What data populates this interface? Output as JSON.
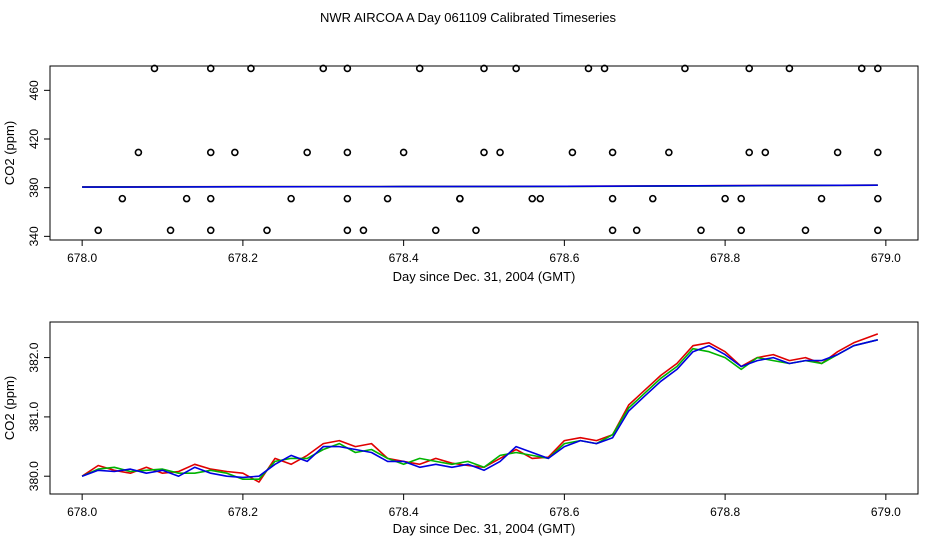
{
  "title": "NWR AIRCOA A  Day 061109  Calibrated Timeseries",
  "colors": {
    "red": "#e00000",
    "green": "#00b400",
    "blue": "#0000e0",
    "black": "#000000"
  },
  "chart_data": [
    {
      "type": "scatter",
      "xlabel": "Day since Dec. 31, 2004 (GMT)",
      "ylabel": "CO2 (ppm)",
      "xlim": [
        677.96,
        679.04
      ],
      "ylim": [
        337,
        480
      ],
      "xticks": [
        678.0,
        678.2,
        678.4,
        678.6,
        678.8,
        679.0
      ],
      "xtick_labels": [
        "678.0",
        "678.2",
        "678.4",
        "678.6",
        "678.8",
        "679.0"
      ],
      "yticks": [
        340,
        380,
        420,
        460
      ],
      "ytick_labels": [
        "340",
        "380",
        "420",
        "460"
      ],
      "points": [
        [
          678.02,
          345
        ],
        [
          678.09,
          478
        ],
        [
          678.13,
          371
        ],
        [
          678.16,
          409
        ],
        [
          678.19,
          409
        ],
        [
          678.23,
          345
        ],
        [
          678.3,
          478
        ],
        [
          678.33,
          371
        ],
        [
          678.38,
          371
        ],
        [
          678.44,
          345
        ],
        [
          678.5,
          478
        ],
        [
          678.54,
          478
        ],
        [
          678.57,
          371
        ],
        [
          678.63,
          478
        ],
        [
          678.66,
          409
        ],
        [
          678.71,
          371
        ],
        [
          678.77,
          345
        ],
        [
          678.83,
          478
        ],
        [
          678.9,
          345
        ],
        [
          678.94,
          409
        ],
        [
          678.99,
          371
        ],
        [
          678.07,
          409
        ],
        [
          678.16,
          478
        ],
        [
          678.26,
          371
        ],
        [
          678.33,
          409
        ],
        [
          678.42,
          478
        ],
        [
          678.47,
          371
        ],
        [
          678.52,
          409
        ],
        [
          678.61,
          409
        ],
        [
          678.69,
          345
        ],
        [
          678.75,
          478
        ],
        [
          678.83,
          409
        ],
        [
          678.88,
          478
        ],
        [
          678.97,
          478
        ],
        [
          678.99,
          409
        ],
        [
          678.05,
          371
        ],
        [
          678.11,
          345
        ],
        [
          678.21,
          478
        ],
        [
          678.28,
          409
        ],
        [
          678.33,
          345
        ],
        [
          678.4,
          409
        ],
        [
          678.47,
          371
        ],
        [
          678.5,
          409
        ],
        [
          678.56,
          371
        ],
        [
          678.65,
          478
        ],
        [
          678.66,
          345
        ],
        [
          678.73,
          409
        ],
        [
          678.8,
          371
        ],
        [
          678.82,
          345
        ],
        [
          678.85,
          409
        ],
        [
          678.92,
          371
        ],
        [
          678.99,
          478
        ],
        [
          678.16,
          371
        ],
        [
          678.16,
          345
        ],
        [
          678.33,
          478
        ],
        [
          678.35,
          345
        ],
        [
          678.49,
          345
        ],
        [
          678.66,
          371
        ],
        [
          678.82,
          371
        ],
        [
          678.99,
          345
        ]
      ],
      "series": [
        {
          "color": "red",
          "x": [
            678.0,
            678.2,
            678.4,
            678.6,
            678.8,
            678.99
          ],
          "y": [
            380.6,
            380.8,
            380.9,
            381.1,
            381.6,
            382.0
          ]
        },
        {
          "color": "green",
          "x": [
            678.0,
            678.2,
            678.4,
            678.6,
            678.8,
            678.99
          ],
          "y": [
            380.5,
            380.8,
            380.9,
            381.0,
            381.5,
            382.0
          ]
        },
        {
          "color": "blue",
          "x": [
            678.0,
            678.2,
            678.4,
            678.6,
            678.8,
            678.99
          ],
          "y": [
            380.5,
            380.7,
            380.9,
            381.1,
            381.6,
            382.0
          ]
        }
      ]
    },
    {
      "type": "line",
      "xlabel": "Day since Dec. 31, 2004 (GMT)",
      "ylabel": "CO2 (ppm)",
      "xlim": [
        677.96,
        679.04
      ],
      "ylim": [
        379.7,
        382.6
      ],
      "xticks": [
        678.0,
        678.2,
        678.4,
        678.6,
        678.8,
        679.0
      ],
      "xtick_labels": [
        "678.0",
        "678.2",
        "678.4",
        "678.6",
        "678.8",
        "679.0"
      ],
      "yticks": [
        380.0,
        381.0,
        382.0
      ],
      "ytick_labels": [
        "380.0",
        "381.0",
        "382.0"
      ],
      "series": [
        {
          "color": "red",
          "x": [
            678.0,
            678.02,
            678.04,
            678.06,
            678.08,
            678.1,
            678.12,
            678.14,
            678.16,
            678.18,
            678.2,
            678.22,
            678.24,
            678.26,
            678.28,
            678.3,
            678.32,
            678.34,
            678.36,
            678.38,
            678.4,
            678.42,
            678.44,
            678.46,
            678.48,
            678.5,
            678.52,
            678.54,
            678.56,
            678.58,
            678.6,
            678.62,
            678.64,
            678.66,
            678.68,
            678.7,
            678.72,
            678.74,
            678.76,
            678.78,
            678.8,
            678.82,
            678.84,
            678.86,
            678.88,
            678.9,
            678.92,
            678.94,
            678.96,
            678.99
          ],
          "y": [
            380.0,
            380.18,
            380.1,
            380.05,
            380.15,
            380.05,
            380.08,
            380.2,
            380.12,
            380.08,
            380.05,
            379.9,
            380.3,
            380.2,
            380.35,
            380.55,
            380.6,
            380.5,
            380.55,
            380.3,
            380.25,
            380.2,
            380.3,
            380.22,
            380.18,
            380.15,
            380.3,
            380.45,
            380.3,
            380.32,
            380.6,
            380.65,
            380.6,
            380.7,
            381.2,
            381.45,
            381.7,
            381.9,
            382.2,
            382.25,
            382.1,
            381.85,
            382.0,
            382.05,
            381.95,
            382.0,
            381.9,
            382.1,
            382.25,
            382.4
          ]
        },
        {
          "color": "green",
          "x": [
            678.0,
            678.02,
            678.04,
            678.06,
            678.08,
            678.1,
            678.12,
            678.14,
            678.16,
            678.18,
            678.2,
            678.22,
            678.24,
            678.26,
            678.28,
            678.3,
            678.32,
            678.34,
            678.36,
            678.38,
            678.4,
            678.42,
            678.44,
            678.46,
            678.48,
            678.5,
            678.52,
            678.54,
            678.56,
            678.58,
            678.6,
            678.62,
            678.64,
            678.66,
            678.68,
            678.7,
            678.72,
            678.74,
            678.76,
            678.78,
            678.8,
            678.82,
            678.84,
            678.86,
            678.88,
            678.9,
            678.92,
            678.94,
            678.96,
            678.99
          ],
          "y": [
            380.0,
            380.12,
            380.15,
            380.08,
            380.1,
            380.12,
            380.05,
            380.05,
            380.1,
            380.05,
            379.95,
            379.95,
            380.25,
            380.3,
            380.3,
            380.45,
            380.55,
            380.4,
            380.45,
            380.3,
            380.2,
            380.3,
            380.25,
            380.2,
            380.25,
            380.15,
            380.35,
            380.4,
            380.35,
            380.3,
            380.55,
            380.6,
            380.55,
            380.7,
            381.15,
            381.4,
            381.65,
            381.85,
            382.15,
            382.1,
            382.0,
            381.8,
            382.0,
            381.95,
            381.9,
            381.95,
            381.9,
            382.05,
            382.2,
            382.3
          ]
        },
        {
          "color": "blue",
          "x": [
            678.0,
            678.02,
            678.04,
            678.06,
            678.08,
            678.1,
            678.12,
            678.14,
            678.16,
            678.18,
            678.2,
            678.22,
            678.24,
            678.26,
            678.28,
            678.3,
            678.32,
            678.34,
            678.36,
            678.38,
            678.4,
            678.42,
            678.44,
            678.46,
            678.48,
            678.5,
            678.52,
            678.54,
            678.56,
            678.58,
            678.6,
            678.62,
            678.64,
            678.66,
            678.68,
            678.7,
            678.72,
            678.74,
            678.76,
            678.78,
            678.8,
            678.82,
            678.84,
            678.86,
            678.88,
            678.9,
            678.92,
            678.94,
            678.96,
            678.99
          ],
          "y": [
            380.0,
            380.1,
            380.08,
            380.12,
            380.05,
            380.1,
            380.0,
            380.15,
            380.05,
            380.0,
            379.98,
            380.0,
            380.2,
            380.35,
            380.25,
            380.5,
            380.5,
            380.45,
            380.4,
            380.25,
            380.25,
            380.15,
            380.2,
            380.15,
            380.2,
            380.1,
            380.25,
            380.5,
            380.4,
            380.3,
            380.5,
            380.6,
            380.55,
            380.65,
            381.1,
            381.35,
            381.6,
            381.8,
            382.1,
            382.2,
            382.05,
            381.85,
            381.95,
            382.0,
            381.9,
            381.95,
            381.95,
            382.05,
            382.2,
            382.3
          ]
        }
      ]
    }
  ]
}
